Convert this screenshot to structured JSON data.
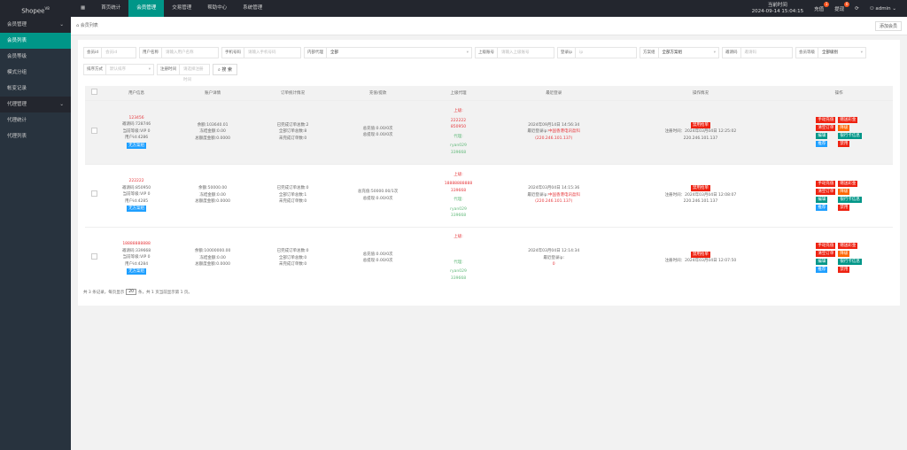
{
  "app": {
    "logo": "Shopee",
    "logo_sup": "V8"
  },
  "nav": [
    {
      "label": "",
      "icon": "grid-icon"
    },
    {
      "label": "首页统计"
    },
    {
      "label": "会员管理",
      "active": true
    },
    {
      "label": "交易管理"
    },
    {
      "label": "帮助中心"
    },
    {
      "label": "系统管理"
    }
  ],
  "topright": {
    "time_label": "当前时间",
    "time": "2024-09-14 15:04:15",
    "recharge": "充值",
    "recharge_count": "1",
    "withdraw": "提现",
    "withdraw_count": "0",
    "user": "admin"
  },
  "sidebar": [
    {
      "label": "会员管理",
      "group": true
    },
    {
      "label": "会员列表",
      "active": true
    },
    {
      "label": "会员等级"
    },
    {
      "label": "模式分组"
    },
    {
      "label": "帐变记录"
    },
    {
      "label": "代理管理",
      "group": true
    },
    {
      "label": "代理统计"
    },
    {
      "label": "代理列表"
    }
  ],
  "breadcrumb": "会员列表",
  "add_button": "添加会员",
  "filters": [
    {
      "label": "会员id",
      "placeholder": "会员id"
    },
    {
      "label": "用户名称",
      "placeholder": "请输入用户名称"
    },
    {
      "label": "手机号码",
      "placeholder": "请输入手机号码"
    },
    {
      "label": "内部代理",
      "value": "全部",
      "select": true
    },
    {
      "label": "上级账号",
      "placeholder": "请输入上级账号"
    },
    {
      "label": "登录ip",
      "placeholder": "ip"
    },
    {
      "label": "方案组",
      "value": "全部方案组",
      "select": true
    },
    {
      "label": "邀请码",
      "placeholder": "邀请码"
    },
    {
      "label": "会员等级",
      "value": "全部级别",
      "select": true
    },
    {
      "label": "排序方式",
      "placeholder": "默认排序",
      "select": true
    },
    {
      "label": "注册时间",
      "placeholder": "请选择注册时间"
    }
  ],
  "search_button": "搜 索",
  "table": {
    "headers": [
      "用户信息",
      "账户详情",
      "订单统计情况",
      "充值/提款",
      "上级代理",
      "最近登录",
      "操作情况",
      "操作"
    ],
    "rows": [
      {
        "name": "123456",
        "invite": "邀请码:728746",
        "vip": "当前等级:VIP 0",
        "uid": "用户id:4286",
        "tag": "无方案组",
        "balance": "余额:103640.01",
        "frozen": "冻结金额:0.00",
        "total": "总额度金额:0.0000",
        "orders": [
          "已完成订单总数:2",
          "全部订单总数:8",
          "未完成订单数:0"
        ],
        "recharge": "总充值:0.00/0次",
        "withdraw": "总提现:0.00/0次",
        "up_label": "上级:",
        "up": [
          "222222",
          "850950"
        ],
        "agent_label": "代理:",
        "agent": [
          "ryan029",
          "339668"
        ],
        "login_time": "2024年09月14日 14:56:34",
        "login_ip_label": "最近登录ip:",
        "login_loc": "中国香港电讯盈科",
        "login_ip": "(220.246.101.137)",
        "status": "禁用抢单",
        "reg": "注册时间：2024年03月04日 12:25:02",
        "reg_ip": "220.246.101.137",
        "ops": [
          "手动充值",
          "赠送彩金",
          "清空订单",
          "降级",
          "编辑",
          "银行卡信息",
          "推荐",
          "禁用"
        ]
      },
      {
        "name": "222222",
        "invite": "邀请码:850950",
        "vip": "当前等级:VIP 0",
        "uid": "用户id:4285",
        "tag": "无方案组",
        "balance": "余额:50000.00",
        "frozen": "冻结金额:0.00",
        "total": "总额度金额:0.0000",
        "orders": [
          "已完成订单总数:0",
          "全部订单总数:1",
          "未完成订单数:0"
        ],
        "recharge": "总充值:50000.00/1次",
        "withdraw": "总提现:0.00/0次",
        "up_label": "上级:",
        "up": [
          "18888888888",
          "339668"
        ],
        "agent_label": "代理:",
        "agent": [
          "ryan029",
          "339668"
        ],
        "login_time": "2024年03月04日 14:15:36",
        "login_ip_label": "最近登录ip:",
        "login_loc": "中国香港电讯盈科",
        "login_ip": "(220.246.101.137)",
        "status": "禁用抢单",
        "reg": "注册时间：2024年03月04日 12:08:07",
        "reg_ip": "220.246.101.137",
        "ops": [
          "手动充值",
          "赠送彩金",
          "清空订单",
          "降级",
          "编辑",
          "银行卡信息",
          "推荐",
          "禁用"
        ]
      },
      {
        "name": "18888888888",
        "invite": "邀请码:339668",
        "vip": "当前等级:VIP 0",
        "uid": "用户id:4284",
        "tag": "无方案组",
        "balance": "余额:10000000.00",
        "frozen": "冻结金额:0.00",
        "total": "总额度金额:0.0000",
        "orders": [
          "已完成订单总数:0",
          "全部订单总数:0",
          "未完成订单数:0"
        ],
        "recharge": "总充值:0.00/0次",
        "withdraw": "总提现:0.00/0次",
        "up_label": "上级:",
        "up": [],
        "agent_label": "代理:",
        "agent": [
          "ryan029",
          "339668"
        ],
        "login_time": "2024年03月04日 12:14:34",
        "login_ip_label": "最近登录ip:",
        "login_loc": "",
        "login_ip": "0",
        "status": "禁用抢单",
        "reg": "注册时间：2024年03月04日 12:07:50",
        "reg_ip": "",
        "ops": [
          "手动充值",
          "赠送彩金",
          "清空订单",
          "降级",
          "编辑",
          "银行卡信息",
          "推荐",
          "禁用"
        ]
      }
    ]
  },
  "pager": {
    "pre": "共 3 条记录，每页显示",
    "size": "20",
    "post": "条，共 1 页当前显示第 1 页。"
  },
  "colors": {
    "accent": "#009688",
    "topbar": "#23262e",
    "sidebar": "#28333e",
    "red": "#e6393d",
    "green": "#5fb878"
  }
}
